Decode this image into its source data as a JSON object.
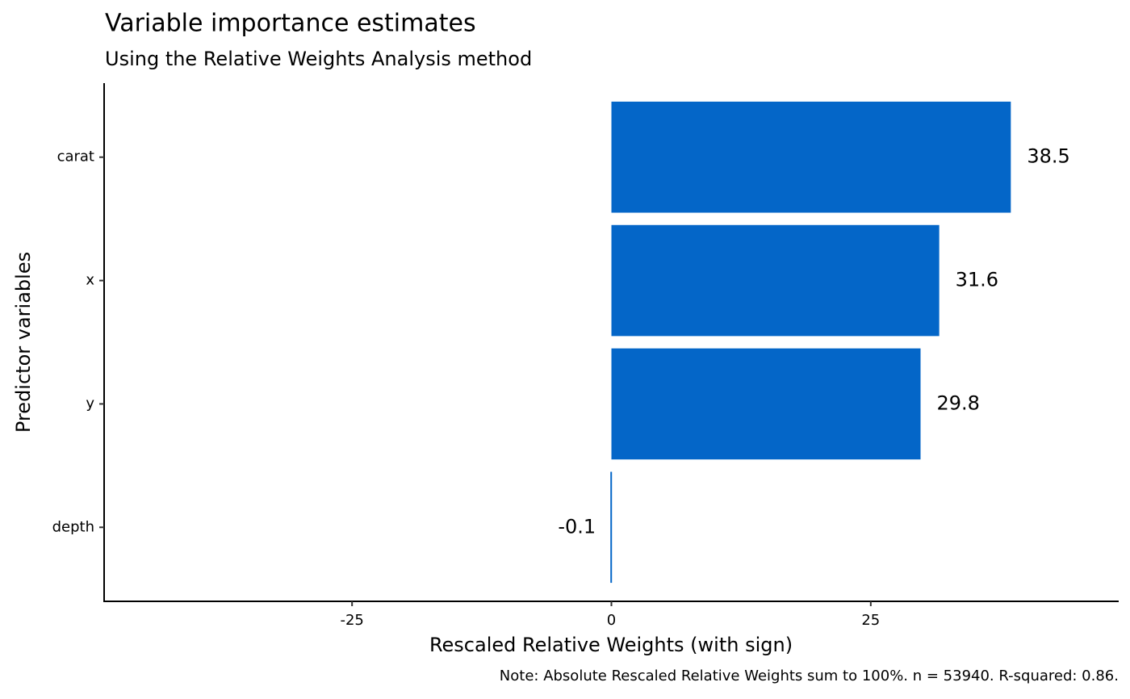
{
  "chart_data": {
    "type": "bar",
    "orientation": "horizontal",
    "title": "Variable importance estimates",
    "subtitle": "Using the Relative Weights Analysis method",
    "x_label": "Rescaled Relative Weights (with sign)",
    "y_label": "Predictor variables",
    "caption": "Note: Absolute Rescaled Relative Weights sum to 100%. n = 53940. R-squared: 0.86.",
    "categories": [
      "carat",
      "x",
      "y",
      "depth"
    ],
    "values": [
      38.5,
      31.6,
      29.8,
      -0.1
    ],
    "color": "#0466c8",
    "xlim": [
      -48.9,
      48.9
    ],
    "xticks": [
      -25,
      0,
      25
    ],
    "grid": false
  }
}
